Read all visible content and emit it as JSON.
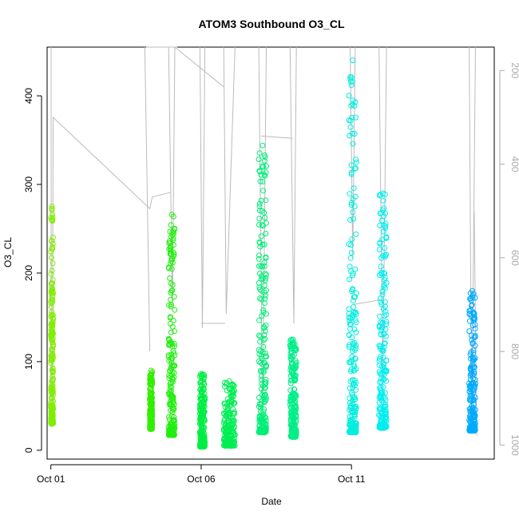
{
  "chart_data": {
    "type": "scatter",
    "title": "ATOM3 Southbound O3_CL",
    "xlabel": "Date",
    "ylabel": "O3_CL",
    "xlim": [
      "2016-09-30T21:00",
      "2016-10-15T18:00"
    ],
    "ylim": [
      -10,
      455
    ],
    "x_ticks": [
      {
        "label": "Oct 01",
        "date": "2016-10-01"
      },
      {
        "label": "Oct 06",
        "date": "2016-10-06"
      },
      {
        "label": "Oct 11",
        "date": "2016-10-11"
      }
    ],
    "y_ticks": [
      0,
      100,
      200,
      300,
      400
    ],
    "secondary_axis": {
      "position": "right",
      "reversed": true,
      "color": "#aaaaaa",
      "lim": [
        1030,
        150
      ],
      "ticks": [
        200,
        400,
        600,
        800,
        1000
      ]
    },
    "point_style": "open-circle",
    "series": [
      {
        "start": "2016-10-01T00:00",
        "end": "2016-10-01T01:50",
        "ymin": 30,
        "ymax": 275,
        "color": "#80ee00"
      },
      {
        "start": "2016-10-04T07:00",
        "end": "2016-10-04T09:00",
        "ymin": 24,
        "ymax": 90,
        "color": "#33ee00"
      },
      {
        "start": "2016-10-04T22:00",
        "end": "2016-10-05T03:00",
        "ymin": 17,
        "ymax": 266,
        "color": "#22ee10"
      },
      {
        "start": "2016-10-05T23:00",
        "end": "2016-10-06T03:00",
        "ymin": 4,
        "ymax": 86,
        "color": "#00ee44"
      },
      {
        "start": "2016-10-06T18:00",
        "end": "2016-10-07T03:00",
        "ymin": 5,
        "ymax": 78,
        "color": "#00ee55"
      },
      {
        "start": "2016-10-07T22:00",
        "end": "2016-10-08T04:00",
        "ymin": 20,
        "ymax": 344,
        "color": "#00ee77"
      },
      {
        "start": "2016-10-08T23:00",
        "end": "2016-10-09T04:00",
        "ymin": 15,
        "ymax": 125,
        "color": "#00ee88"
      },
      {
        "start": "2016-10-10T22:00",
        "end": "2016-10-11T04:00",
        "ymin": 20,
        "ymax": 440,
        "color": "#00eedd"
      },
      {
        "start": "2016-10-11T22:00",
        "end": "2016-10-12T04:00",
        "ymin": 25,
        "ymax": 290,
        "color": "#00eeee"
      },
      {
        "start": "2016-10-14T22:00",
        "end": "2016-10-15T03:00",
        "ymin": 22,
        "ymax": 180,
        "color": "#00aaff"
      }
    ],
    "pressure_line": {
      "color": "#bbbbbb",
      "segments": [
        [
          [
            "2016-10-01T00:10",
            150
          ],
          [
            "2016-10-01T00:20",
            960
          ],
          [
            "2016-10-01T01:00",
            960
          ],
          [
            "2016-10-01T01:50",
            300
          ],
          [
            "2016-10-04T07:00",
            495
          ],
          [
            "2016-10-04T09:00",
            470
          ],
          [
            "2016-10-05T00:00",
            460
          ]
        ],
        [
          [
            "2016-10-04T03:00",
            150
          ],
          [
            "2016-10-04T07:00",
            800
          ]
        ],
        [
          [
            "2016-10-04T22:00",
            150
          ],
          [
            "2016-10-05T01:00",
            700
          ],
          [
            "2016-10-05T03:00",
            150
          ]
        ],
        [
          [
            "2016-10-04T04:00",
            150
          ],
          [
            "2016-10-05T05:00",
            130
          ]
        ],
        [
          [
            "2016-10-05T03:00",
            150
          ],
          [
            "2016-10-06T18:00",
            235
          ]
        ],
        [
          [
            "2016-10-05T23:00",
            150
          ],
          [
            "2016-10-06T01:00",
            750
          ],
          [
            "2016-10-06T03:00",
            150
          ]
        ],
        [
          [
            "2016-10-06T00:00",
            740
          ],
          [
            "2016-10-06T19:00",
            740
          ]
        ],
        [
          [
            "2016-10-06T18:00",
            150
          ],
          [
            "2016-10-06T20:00",
            720
          ],
          [
            "2016-10-07T03:00",
            150
          ]
        ],
        [
          [
            "2016-10-07T22:00",
            150
          ],
          [
            "2016-10-08T01:00",
            960
          ],
          [
            "2016-10-08T04:00",
            150
          ]
        ],
        [
          [
            "2016-10-08T00:00",
            340
          ],
          [
            "2016-10-09T01:00",
            345
          ]
        ],
        [
          [
            "2016-10-08T23:00",
            150
          ],
          [
            "2016-10-09T02:00",
            740
          ],
          [
            "2016-10-09T04:00",
            150
          ]
        ],
        [
          [
            "2016-10-10T23:00",
            150
          ],
          [
            "2016-10-11T01:00",
            600
          ],
          [
            "2016-10-11T03:00",
            150
          ]
        ],
        [
          [
            "2016-10-11T01:00",
            700
          ],
          [
            "2016-10-11T23:00",
            690
          ]
        ],
        [
          [
            "2016-10-11T22:00",
            150
          ],
          [
            "2016-10-12T01:00",
            860
          ],
          [
            "2016-10-12T04:00",
            150
          ]
        ],
        [
          [
            "2016-10-14T22:00",
            150
          ],
          [
            "2016-10-15T00:00",
            960
          ],
          [
            "2016-10-15T03:00",
            150
          ]
        ],
        [
          [
            "2016-10-15T02:00",
            500
          ],
          [
            "2016-10-15T04:00",
            980
          ]
        ]
      ]
    }
  }
}
